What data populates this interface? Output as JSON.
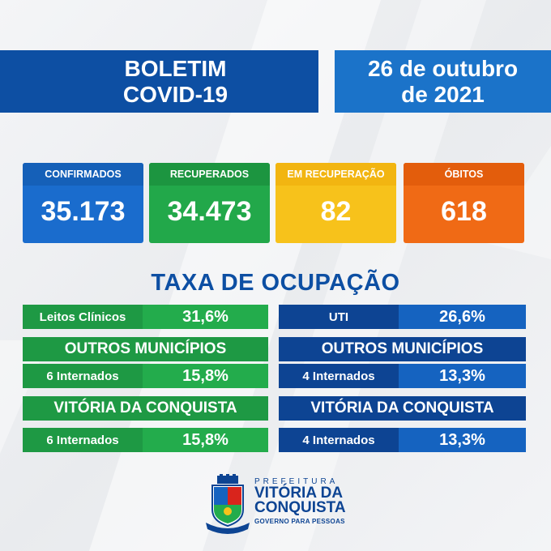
{
  "header": {
    "title_line1": "BOLETIM",
    "title_line2": "COVID-19",
    "date_line1": "26 de outubro",
    "date_line2": "de 2021"
  },
  "stats": {
    "confirmados": {
      "label": "CONFIRMADOS",
      "value": "35.173"
    },
    "recuperados": {
      "label": "RECUPERADOS",
      "value": "34.473"
    },
    "em_recuperacao": {
      "label": "EM RECUPERAÇÃO",
      "value": "82"
    },
    "obitos": {
      "label": "ÓBITOS",
      "value": "618"
    }
  },
  "ocupacao": {
    "title": "TAXA DE OCUPAÇÃO",
    "clinicos": {
      "label": "Leitos Clínicos",
      "value": "31,6%",
      "outros_title": "OUTROS MUNICÍPIOS",
      "outros_label": "6 Internados",
      "outros_value": "15,8%",
      "vdc_title": "VITÓRIA DA CONQUISTA",
      "vdc_label": "6 Internados",
      "vdc_value": "15,8%"
    },
    "uti": {
      "label": "UTI",
      "value": "26,6%",
      "outros_title": "OUTROS MUNICÍPIOS",
      "outros_label": "4 Internados",
      "outros_value": "13,3%",
      "vdc_title": "VITÓRIA DA CONQUISTA",
      "vdc_label": "4 Internados",
      "vdc_value": "13,3%"
    }
  },
  "logo": {
    "line1": "PREFEITURA",
    "line2": "VITÓRIA DA",
    "line3": "CONQUISTA",
    "line4": "GOVERNO PARA PESSOAS"
  },
  "colors": {
    "navy": "#0d4493",
    "blue": "#1563c0",
    "green": "#23ac4c",
    "yellow": "#f7c21b",
    "orange": "#f06a15"
  }
}
